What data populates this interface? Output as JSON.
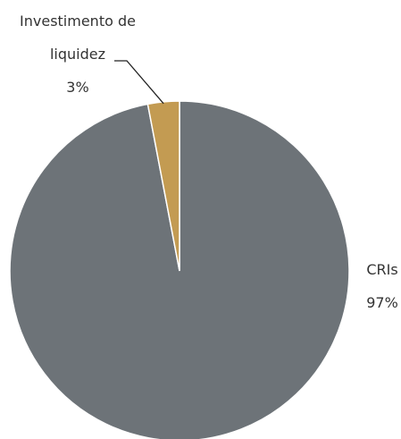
{
  "chart_data": {
    "type": "pie",
    "categories": [
      "CRIs",
      "Investimento de liquidez"
    ],
    "values": [
      97,
      3
    ],
    "value_labels": [
      "97%",
      "3%"
    ],
    "colors": [
      "#6d7378",
      "#c39b52"
    ]
  }
}
